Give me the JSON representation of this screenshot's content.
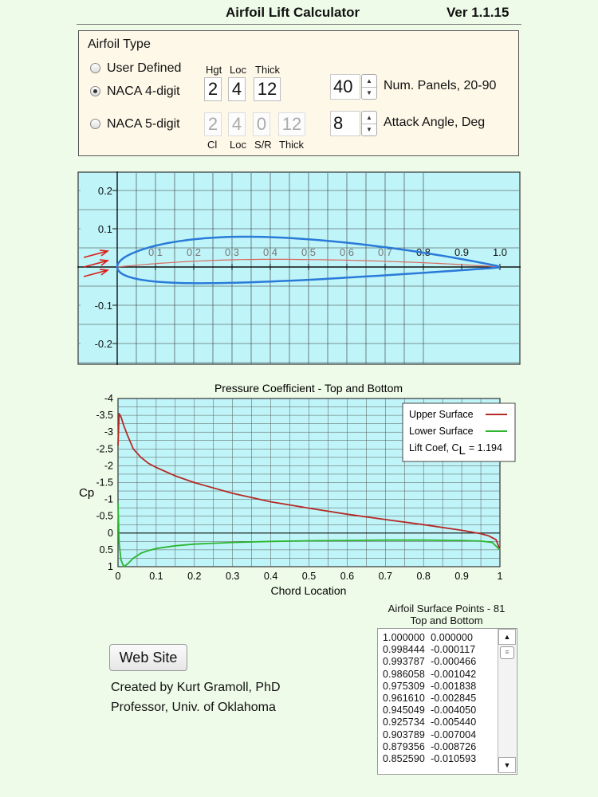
{
  "header": {
    "title": "Airfoil Lift Calculator",
    "version": "Ver 1.1.15"
  },
  "airfoil_type": {
    "heading": "Airfoil Type",
    "options": [
      "User Defined",
      "NACA 4-digit",
      "NACA 5-digit"
    ],
    "selected": "NACA 4-digit",
    "naca4": {
      "labels": [
        "Hgt",
        "Loc",
        "Thick"
      ],
      "values": [
        "2",
        "4",
        "12"
      ]
    },
    "naca5": {
      "labels": [
        "Cl",
        "Loc",
        "S/R",
        "Thick"
      ],
      "values": [
        "2",
        "4",
        "0",
        "12"
      ]
    },
    "panels": {
      "value": "40",
      "label": "Num. Panels, 20-90"
    },
    "attack": {
      "value": "8",
      "label": "Attack Angle, Deg"
    }
  },
  "profile_plot": {
    "y_ticks": [
      "0.2",
      "0.1",
      "-0.1",
      "-0.2"
    ],
    "x_ticks": [
      "0.1",
      "0.2",
      "0.3",
      "0.4",
      "0.5",
      "0.6",
      "0.7",
      "0.8",
      "0.9",
      "1.0"
    ]
  },
  "chart_data": {
    "type": "line",
    "title": "Pressure Coefficient - Top and Bottom",
    "xlabel": "Chord Location",
    "ylabel": "Cp",
    "xlim": [
      0,
      1
    ],
    "ylim": [
      1,
      -4
    ],
    "x_ticks": [
      "0",
      "0.1",
      "0.2",
      "0.3",
      "0.4",
      "0.5",
      "0.6",
      "0.7",
      "0.8",
      "0.9",
      "1"
    ],
    "y_ticks": [
      "-4",
      "-3.5",
      "-3",
      "-2.5",
      "-2",
      "-1.5",
      "-1",
      "-0.5",
      "0",
      "0.5",
      "1"
    ],
    "series": [
      {
        "name": "Upper Surface",
        "color": "#b52a26",
        "x": [
          0,
          0.003,
          0.008,
          0.015,
          0.025,
          0.04,
          0.06,
          0.08,
          0.1,
          0.15,
          0.2,
          0.3,
          0.4,
          0.5,
          0.6,
          0.7,
          0.8,
          0.9,
          0.95,
          0.97,
          0.99,
          1.0
        ],
        "y": [
          -2.6,
          -3.55,
          -3.45,
          -3.2,
          -2.9,
          -2.5,
          -2.25,
          -2.07,
          -1.95,
          -1.7,
          -1.5,
          -1.18,
          -0.93,
          -0.74,
          -0.56,
          -0.4,
          -0.25,
          -0.08,
          0.02,
          0.08,
          0.2,
          0.5
        ]
      },
      {
        "name": "Lower Surface",
        "color": "#2cb52e",
        "x": [
          0,
          0.003,
          0.008,
          0.015,
          0.025,
          0.04,
          0.06,
          0.08,
          0.1,
          0.15,
          0.2,
          0.3,
          0.4,
          0.5,
          0.6,
          0.7,
          0.8,
          0.9,
          0.95,
          0.98,
          1.0
        ],
        "y": [
          -0.9,
          0.3,
          0.8,
          1.0,
          0.92,
          0.75,
          0.6,
          0.52,
          0.46,
          0.38,
          0.33,
          0.28,
          0.25,
          0.23,
          0.22,
          0.21,
          0.21,
          0.22,
          0.24,
          0.28,
          0.5
        ]
      }
    ],
    "lift": {
      "label": "Lift Coef, C",
      "sub": "L",
      "value": "= 1.194"
    }
  },
  "surface_points": {
    "title_line1": "Airfoil Surface Points - 81",
    "title_line2": "Top and Bottom",
    "rows": [
      "1.000000  0.000000",
      "0.998444  -0.000117",
      "0.993787  -0.000466",
      "0.986058  -0.001042",
      "0.975309  -0.001838",
      "0.961610  -0.002845",
      "0.945049  -0.004050",
      "0.925734  -0.005440",
      "0.903789  -0.007004",
      "0.879356  -0.008726",
      "0.852590  -0.010593"
    ]
  },
  "footer": {
    "web_button": "Web Site",
    "credit1": "Created by Kurt Gramoll, PhD",
    "credit2": "Professor, Univ. of Oklahoma"
  }
}
